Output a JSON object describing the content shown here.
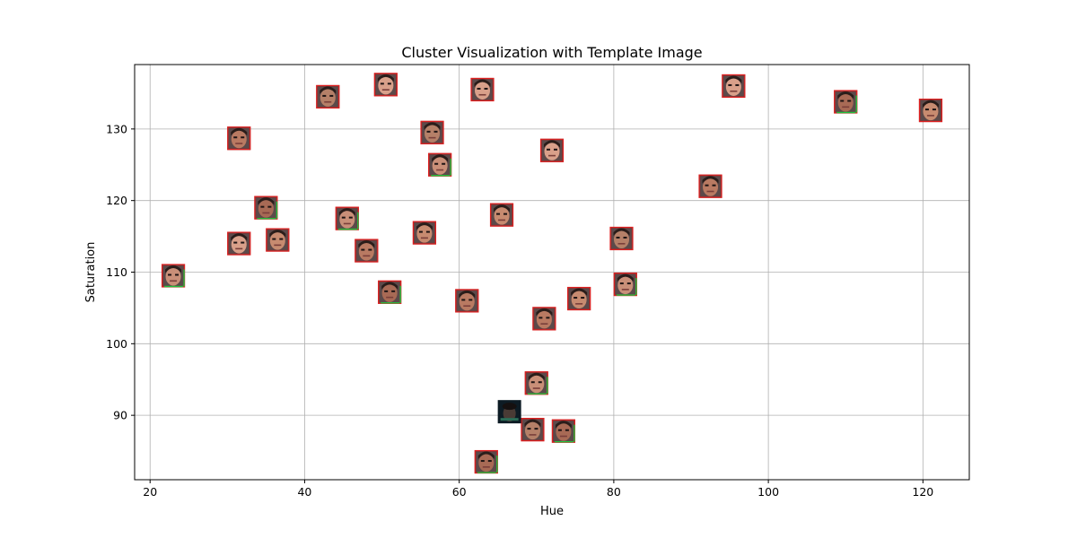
{
  "chart_data": {
    "type": "scatter",
    "title": "Cluster Visualization with Template Image",
    "xlabel": "Hue",
    "ylabel": "Saturation",
    "xlim": [
      18,
      126
    ],
    "ylim": [
      81,
      139
    ],
    "xticks": [
      20,
      40,
      60,
      80,
      100,
      120
    ],
    "yticks": [
      90,
      100,
      110,
      120,
      130
    ],
    "grid": true,
    "marker": "face-thumbnail",
    "template_point": {
      "x": 66.5,
      "y": 90.5
    },
    "points": [
      {
        "x": 23,
        "y": 109.5
      },
      {
        "x": 31.5,
        "y": 128.7
      },
      {
        "x": 31.5,
        "y": 114
      },
      {
        "x": 35,
        "y": 119
      },
      {
        "x": 36.5,
        "y": 114.5
      },
      {
        "x": 43,
        "y": 134.5
      },
      {
        "x": 45.5,
        "y": 117.5
      },
      {
        "x": 48,
        "y": 113
      },
      {
        "x": 50.5,
        "y": 136.2
      },
      {
        "x": 51,
        "y": 107.2
      },
      {
        "x": 55.5,
        "y": 115.5
      },
      {
        "x": 56.5,
        "y": 129.5
      },
      {
        "x": 57.5,
        "y": 125
      },
      {
        "x": 61,
        "y": 106
      },
      {
        "x": 63,
        "y": 135.5
      },
      {
        "x": 63.5,
        "y": 83.5
      },
      {
        "x": 65.5,
        "y": 118
      },
      {
        "x": 69.5,
        "y": 88
      },
      {
        "x": 70,
        "y": 94.5
      },
      {
        "x": 71,
        "y": 103.5
      },
      {
        "x": 72,
        "y": 127
      },
      {
        "x": 73.5,
        "y": 87.8
      },
      {
        "x": 75.5,
        "y": 106.3
      },
      {
        "x": 81,
        "y": 114.7
      },
      {
        "x": 81.5,
        "y": 108.3
      },
      {
        "x": 92.5,
        "y": 122
      },
      {
        "x": 95.5,
        "y": 136
      },
      {
        "x": 110,
        "y": 133.8
      },
      {
        "x": 121,
        "y": 132.6
      }
    ]
  }
}
